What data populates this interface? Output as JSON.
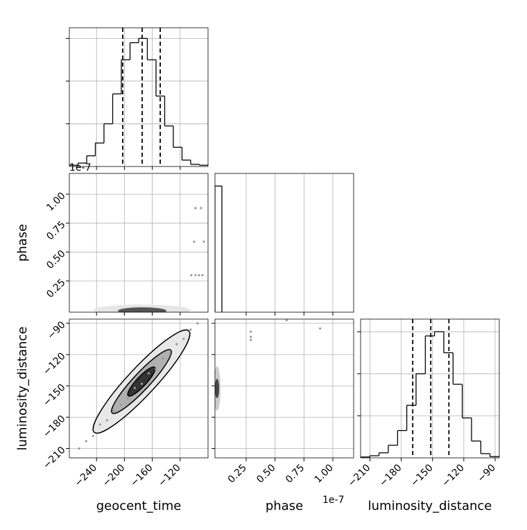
{
  "chart_data": [
    {
      "type": "histogram",
      "bins": [
        -279,
        -266.6,
        -254.1,
        -241.7,
        -229.3,
        -216.8,
        -204.4,
        -191.9,
        -179.5,
        -167.1,
        -154.6,
        -142.2,
        -129.8,
        -117.3,
        -104.9,
        -92.4,
        -80
      ],
      "counts": [
        3,
        8,
        25,
        55,
        100,
        170,
        250,
        290,
        300,
        250,
        165,
        95,
        45,
        15,
        5,
        3
      ],
      "quantiles": [
        -202.4,
        -174.5,
        -148.6
      ],
      "xlim": [
        -279,
        -80
      ],
      "ylim": [
        0,
        325
      ],
      "xticks": [
        -240,
        -200,
        -160,
        -120
      ],
      "yticks": [
        100,
        200,
        300
      ],
      "grid": true,
      "color": "#000000"
    },
    {
      "type": "scatter",
      "ylabel": "phase",
      "offset_text": "1e-7",
      "x": [
        -98,
        -90,
        -100,
        -86,
        -104,
        -98,
        -93,
        -88
      ],
      "y": [
        0.88,
        0.88,
        0.59,
        0.59,
        0.3,
        0.3,
        0.3,
        0.3
      ],
      "xlim": [
        -279,
        -80
      ],
      "ylim": [
        -0.02,
        1.18
      ],
      "xticks": [
        -240,
        -200,
        -160,
        -120
      ],
      "yticks": [
        {
          "value": 0.25,
          "label": "0.25"
        },
        {
          "value": 0.5,
          "label": "0.50"
        },
        {
          "value": 0.75,
          "label": "0.75"
        },
        {
          "value": 1.0,
          "label": "1.00"
        }
      ],
      "show_ytick_labels": true,
      "grid": true,
      "color": "#999999"
    },
    {
      "type": "histogram",
      "bins": [
        -0.02,
        0.04
      ],
      "counts": [
        4000
      ],
      "xlim": [
        -0.02,
        1.18
      ],
      "ylim": [
        0,
        4400
      ],
      "xticks": [
        0.25,
        0.5,
        0.75,
        1.0
      ],
      "yticks": [],
      "grid": true,
      "color": "#000000"
    },
    {
      "type": "scatter",
      "xlabel": "geocent_time",
      "ylabel": "luminosity_distance",
      "x": [
        -265,
        -255,
        -245,
        -235,
        -225,
        -215,
        -205,
        -195,
        -185,
        -175,
        -165,
        -155,
        -145,
        -135,
        -125,
        -115,
        -105,
        -95
      ],
      "y": [
        -210,
        -203,
        -198,
        -187,
        -183,
        -174,
        -168,
        -162,
        -152,
        -148,
        -138,
        -134,
        -124,
        -120,
        -110,
        -105,
        -96,
        -90
      ],
      "xlim": [
        -279,
        -80
      ],
      "ylim": [
        -219,
        -86
      ],
      "xticks": [
        {
          "value": -240,
          "label": "−240"
        },
        {
          "value": -200,
          "label": "−200"
        },
        {
          "value": -160,
          "label": "−160"
        },
        {
          "value": -120,
          "label": "−120"
        }
      ],
      "yticks": [
        {
          "value": -210,
          "label": "−210"
        },
        {
          "value": -180,
          "label": "−180"
        },
        {
          "value": -150,
          "label": "−150"
        },
        {
          "value": -120,
          "label": "−120"
        },
        {
          "value": -90,
          "label": "−90"
        }
      ],
      "show_xtick_labels": true,
      "show_ytick_labels": true,
      "grid": true,
      "color": "#999999"
    },
    {
      "type": "scatter",
      "xlabel": "phase",
      "offset_text": "1e-7",
      "x": [
        0.29,
        0.29,
        0.29,
        0.6,
        0.89
      ],
      "y": [
        -98,
        -103,
        -106,
        -87,
        -95
      ],
      "xlim": [
        -0.02,
        1.18
      ],
      "ylim": [
        -219,
        -86
      ],
      "xticks": [
        {
          "value": 0.25,
          "label": "0.25"
        },
        {
          "value": 0.5,
          "label": "0.50"
        },
        {
          "value": 0.75,
          "label": "0.75"
        },
        {
          "value": 1.0,
          "label": "1.00"
        }
      ],
      "yticks": [
        -210,
        -180,
        -150,
        -120,
        -90
      ],
      "show_xtick_labels": true,
      "grid": true,
      "color": "#999999"
    },
    {
      "type": "histogram",
      "xlabel": "luminosity_distance",
      "bins": [
        -219,
        -210.1,
        -201.3,
        -192.4,
        -183.5,
        -174.7,
        -165.8,
        -156.9,
        -148.1,
        -139.2,
        -130.3,
        -121.5,
        -112.6,
        -103.7,
        -94.9,
        -86
      ],
      "counts": [
        2,
        5,
        12,
        30,
        65,
        125,
        200,
        290,
        300,
        250,
        175,
        95,
        40,
        10,
        3
      ],
      "quantiles": [
        -169,
        -151.7,
        -134.3
      ],
      "xlim": [
        -219,
        -86
      ],
      "ylim": [
        0,
        330
      ],
      "xticks": [
        {
          "value": -210,
          "label": "−210"
        },
        {
          "value": -180,
          "label": "−180"
        },
        {
          "value": -150,
          "label": "−150"
        },
        {
          "value": -120,
          "label": "−120"
        },
        {
          "value": -90,
          "label": "−90"
        }
      ],
      "yticks": [
        100,
        200,
        300
      ],
      "show_xtick_labels": true,
      "grid": true,
      "color": "#000000"
    }
  ]
}
